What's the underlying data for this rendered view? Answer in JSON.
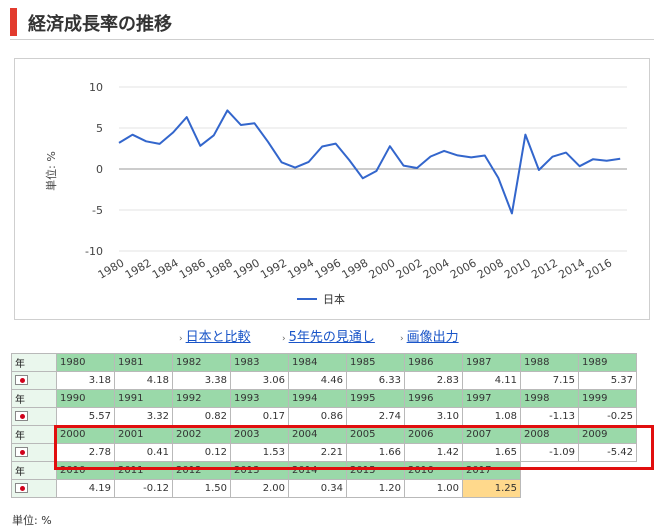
{
  "header": {
    "title": "経済成長率の推移"
  },
  "links": [
    {
      "label": "日本と比較"
    },
    {
      "label": "5年先の見通し"
    },
    {
      "label": "画像出力"
    }
  ],
  "chart_data": {
    "type": "line",
    "title": "",
    "xlabel": "",
    "ylabel": "単位: %",
    "ylim": [
      -10,
      10
    ],
    "yticks": [
      "10",
      "5",
      "0",
      "-5",
      "-10"
    ],
    "xticks": [
      "1980",
      "1982",
      "1984",
      "1986",
      "1988",
      "1990",
      "1992",
      "1994",
      "1996",
      "1998",
      "2000",
      "2002",
      "2004",
      "2006",
      "2008",
      "2010",
      "2012",
      "2014",
      "2016"
    ],
    "x": [
      1980,
      1981,
      1982,
      1983,
      1984,
      1985,
      1986,
      1987,
      1988,
      1989,
      1990,
      1991,
      1992,
      1993,
      1994,
      1995,
      1996,
      1997,
      1998,
      1999,
      2000,
      2001,
      2002,
      2003,
      2004,
      2005,
      2006,
      2007,
      2008,
      2009,
      2010,
      2011,
      2012,
      2013,
      2014,
      2015,
      2016,
      2017
    ],
    "series": [
      {
        "name": "日本",
        "color": "#3366cc",
        "values": [
          3.18,
          4.18,
          3.38,
          3.06,
          4.46,
          6.33,
          2.83,
          4.11,
          7.15,
          5.37,
          5.57,
          3.32,
          0.82,
          0.17,
          0.86,
          2.74,
          3.1,
          1.08,
          -1.13,
          -0.25,
          2.78,
          0.41,
          0.12,
          1.53,
          2.21,
          1.66,
          1.42,
          1.65,
          -1.09,
          -5.42,
          4.19,
          -0.12,
          1.5,
          2.0,
          0.34,
          1.2,
          1.0,
          1.25
        ]
      }
    ],
    "legend": "bottom",
    "grid": true
  },
  "table": {
    "year_label": "年",
    "flag_icon": "japan-flag-icon",
    "highlight_year": "2017",
    "rows": [
      {
        "years": [
          "1980",
          "1981",
          "1982",
          "1983",
          "1984",
          "1985",
          "1986",
          "1987",
          "1988",
          "1989"
        ],
        "values": [
          "3.18",
          "4.18",
          "3.38",
          "3.06",
          "4.46",
          "6.33",
          "2.83",
          "4.11",
          "7.15",
          "5.37"
        ]
      },
      {
        "years": [
          "1990",
          "1991",
          "1992",
          "1993",
          "1994",
          "1995",
          "1996",
          "1997",
          "1998",
          "1999"
        ],
        "values": [
          "5.57",
          "3.32",
          "0.82",
          "0.17",
          "0.86",
          "2.74",
          "3.10",
          "1.08",
          "-1.13",
          "-0.25"
        ]
      },
      {
        "years": [
          "2000",
          "2001",
          "2002",
          "2003",
          "2004",
          "2005",
          "2006",
          "2007",
          "2008",
          "2009"
        ],
        "values": [
          "2.78",
          "0.41",
          "0.12",
          "1.53",
          "2.21",
          "1.66",
          "1.42",
          "1.65",
          "-1.09",
          "-5.42"
        ]
      },
      {
        "years": [
          "2010",
          "2011",
          "2012",
          "2013",
          "2014",
          "2015",
          "2016",
          "2017"
        ],
        "values": [
          "4.19",
          "-0.12",
          "1.50",
          "2.00",
          "0.34",
          "1.20",
          "1.00",
          "1.25"
        ]
      }
    ]
  },
  "footer": {
    "unit": "単位: %"
  },
  "colors": {
    "accent": "#e23b2e",
    "line": "#3366cc",
    "year_cell": "#9ad9a9",
    "highlight_cell": "#ffd98c",
    "selection_border": "#e10e0e"
  }
}
